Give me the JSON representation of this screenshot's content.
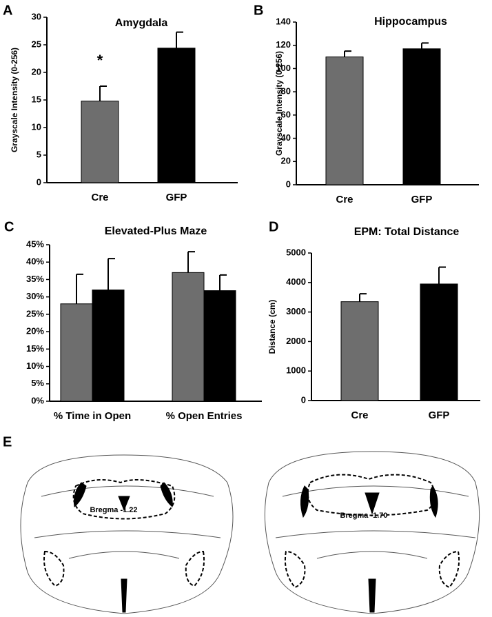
{
  "chart_data": [
    {
      "type": "bar",
      "label": "A",
      "title": "Amygdala",
      "ylabel": "Grayscale Intensity (0-256)",
      "annotation": "*",
      "categories": [
        "Cre",
        "GFP"
      ],
      "series": [
        {
          "colors": [
            "#6e6e6e",
            "#000000"
          ],
          "values": [
            14.8,
            24.4
          ],
          "errors": [
            2.7,
            2.9
          ]
        }
      ],
      "ylim": [
        0,
        30
      ],
      "yticks": [
        0,
        5,
        10,
        15,
        20,
        25,
        30
      ]
    },
    {
      "type": "bar",
      "label": "B",
      "title": "Hippocampus",
      "ylabel": "Grayscale Intensity (0-256)",
      "categories": [
        "Cre",
        "GFP"
      ],
      "series": [
        {
          "colors": [
            "#6e6e6e",
            "#000000"
          ],
          "values": [
            110,
            117
          ],
          "errors": [
            5,
            5
          ]
        }
      ],
      "ylim": [
        0,
        140
      ],
      "yticks": [
        0,
        20,
        40,
        60,
        80,
        100,
        120,
        140
      ]
    },
    {
      "type": "bar",
      "label": "C",
      "title": "Elevated-Plus Maze",
      "categories": [
        "% Time in Open",
        "% Open Entries"
      ],
      "series": [
        {
          "color": "#6e6e6e",
          "values": [
            28,
            37
          ],
          "errors": [
            8.5,
            6
          ]
        },
        {
          "color": "#000000",
          "values": [
            32,
            31.8
          ],
          "errors": [
            9,
            4.5
          ]
        }
      ],
      "ylim": [
        0,
        45
      ],
      "yticks": [
        {
          "value": 0,
          "label": "0%"
        },
        {
          "value": 5,
          "label": "5%"
        },
        {
          "value": 10,
          "label": "10%"
        },
        {
          "value": 15,
          "label": "15%"
        },
        {
          "value": 20,
          "label": "20%"
        },
        {
          "value": 25,
          "label": "25%"
        },
        {
          "value": 30,
          "label": "30%"
        },
        {
          "value": 35,
          "label": "35%"
        },
        {
          "value": 40,
          "label": "40%"
        },
        {
          "value": 45,
          "label": "45%"
        }
      ]
    },
    {
      "type": "bar",
      "label": "D",
      "title": "EPM: Total Distance",
      "ylabel": "Distance (cm)",
      "categories": [
        "Cre",
        "GFP"
      ],
      "series": [
        {
          "colors": [
            "#6e6e6e",
            "#000000"
          ],
          "values": [
            3350,
            3950
          ],
          "errors": [
            270,
            570
          ]
        }
      ],
      "ylim": [
        0,
        5000
      ],
      "yticks": [
        0,
        1000,
        2000,
        3000,
        4000,
        5000
      ]
    }
  ],
  "figure_e": {
    "label": "E",
    "sections": [
      "Bregma -1.22",
      "Bregma -1.70"
    ]
  }
}
